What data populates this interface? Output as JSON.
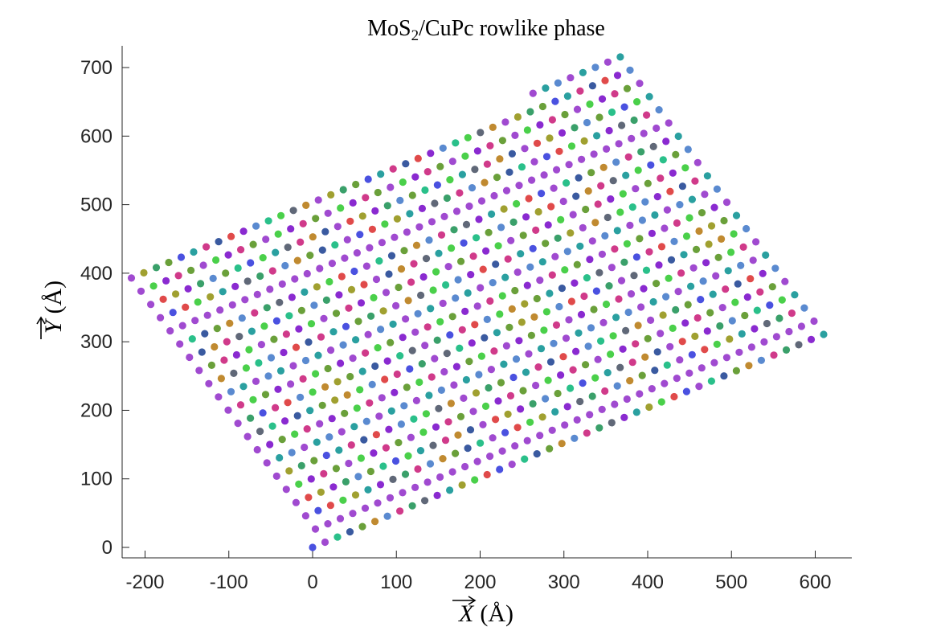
{
  "chart_data": {
    "type": "scatter",
    "title": {
      "main": "MoS",
      "subscript": "2",
      "rest": "/CuPc rowlike phase"
    },
    "xlabel": {
      "vector_symbol": "X",
      "unit": "(Å)"
    },
    "ylabel": {
      "vector_symbol": "Y",
      "unit": "(Å)"
    },
    "xlim": [
      -228,
      640
    ],
    "ylim": [
      -15,
      728
    ],
    "x_ticks": [
      -200,
      -100,
      0,
      100,
      200,
      300,
      400,
      500,
      600
    ],
    "y_ticks": [
      0,
      100,
      200,
      300,
      400,
      500,
      600,
      700
    ],
    "x_tick_labels": [
      "-200",
      "-100",
      "0",
      "100",
      "200",
      "300",
      "400",
      "500",
      "600"
    ],
    "y_tick_labels": [
      "0",
      "100",
      "200",
      "300",
      "400",
      "500",
      "600",
      "700"
    ],
    "grid": false,
    "legend": "none",
    "lattice": {
      "description_of_points": "oblique lattice of molecule positions; point (i, j) = i*a + j*b with clipping to the visible parallelogram",
      "a_vector": [
        14.88,
        7.58
      ],
      "b_vector": [
        -11.56,
        19.27
      ],
      "i_range": [
        0,
        44
      ],
      "j_range": [
        0,
        32
      ],
      "clip_region": {
        "origin": [
          0,
          0
        ],
        "corner_a": [
          635,
          275
        ],
        "corner_b": [
          -228,
          395
        ],
        "corner_far": [
          378,
          725
        ]
      },
      "colors": [
        "#4a51e0",
        "#e04a4a",
        "#4ad04a",
        "#a0a030",
        "#2aa0a0",
        "#8a2ad0",
        "#606878",
        "#3aa06a",
        "#d03a8a",
        "#5a8ad0",
        "#c08a30",
        "#6aa03a",
        "#3a5aa0",
        "#2ac08a",
        "#a04ad0"
      ]
    }
  }
}
